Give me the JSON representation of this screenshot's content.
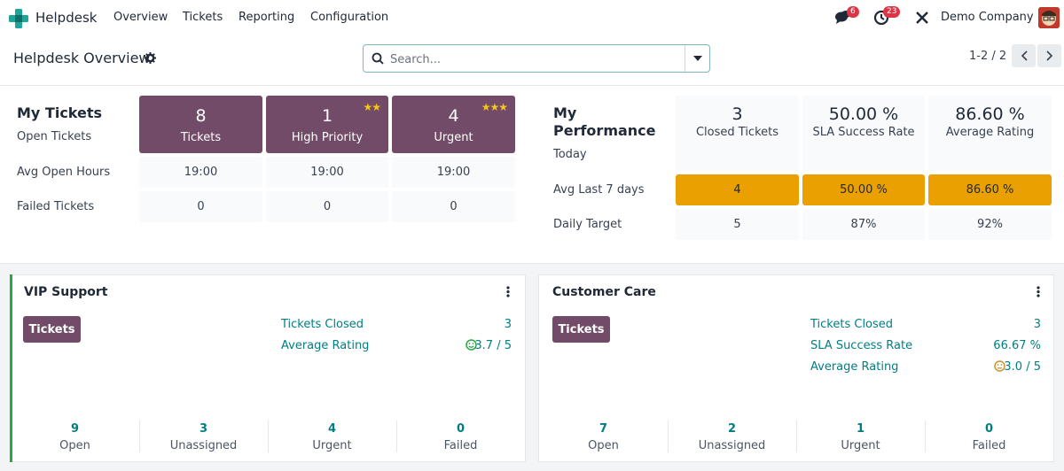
{
  "navbar": {
    "app_name": "Helpdesk",
    "menus": [
      "Overview",
      "Tickets",
      "Reporting",
      "Configuration"
    ],
    "messages_count": "6",
    "activities_count": "23",
    "company": "Demo Company"
  },
  "control": {
    "title": "Helpdesk Overview",
    "search_placeholder": "Search...",
    "pager": "1-2 / 2"
  },
  "my_tickets": {
    "title": "My Tickets",
    "rows": [
      "Open Tickets",
      "Avg Open Hours",
      "Failed Tickets"
    ],
    "columns": [
      {
        "count": "8",
        "label": "Tickets",
        "stars": "",
        "hours": "19:00",
        "failed": "0"
      },
      {
        "count": "1",
        "label": "High Priority",
        "stars": "★★",
        "hours": "19:00",
        "failed": "0"
      },
      {
        "count": "4",
        "label": "Urgent",
        "stars": "★★★",
        "hours": "19:00",
        "failed": "0"
      }
    ]
  },
  "my_performance": {
    "title_line1": "My",
    "title_line2": "Performance",
    "rows": [
      "Today",
      "Avg Last 7 days",
      "Daily Target"
    ],
    "columns": [
      {
        "today": "3",
        "label": "Closed Tickets",
        "avg7": "4",
        "target": "5"
      },
      {
        "today": "50.00 %",
        "label": "SLA Success Rate",
        "avg7": "50.00 %",
        "target": "87%"
      },
      {
        "today": "86.60 %",
        "label": "Average Rating",
        "avg7": "86.60 %",
        "target": "92%"
      }
    ]
  },
  "teams": [
    {
      "name": "VIP Support",
      "button": "Tickets",
      "stats": [
        {
          "label": "Tickets Closed",
          "value": "3"
        },
        {
          "label": "Average Rating",
          "value": "3.7 / 5"
        }
      ],
      "footer": [
        {
          "num": "9",
          "label": "Open"
        },
        {
          "num": "3",
          "label": "Unassigned"
        },
        {
          "num": "4",
          "label": "Urgent"
        },
        {
          "num": "0",
          "label": "Failed"
        }
      ]
    },
    {
      "name": "Customer Care",
      "button": "Tickets",
      "stats": [
        {
          "label": "Tickets Closed",
          "value": "3"
        },
        {
          "label": "SLA Success Rate",
          "value": "66.67 %"
        },
        {
          "label": "Average Rating",
          "value": "3.0 / 5"
        }
      ],
      "footer": [
        {
          "num": "7",
          "label": "Open"
        },
        {
          "num": "2",
          "label": "Unassigned"
        },
        {
          "num": "1",
          "label": "Urgent"
        },
        {
          "num": "0",
          "label": "Failed"
        }
      ]
    }
  ],
  "colors": {
    "brand": "#714b67",
    "accent": "#017e84",
    "warning": "#e9a000",
    "success": "#28a745"
  }
}
